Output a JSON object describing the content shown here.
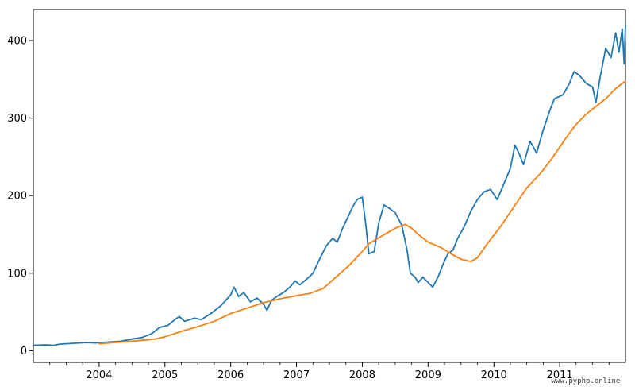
{
  "watermark": "www.pyphp.online",
  "chart_data": {
    "type": "line",
    "title": "",
    "xlabel": "",
    "ylabel": "",
    "xlim": [
      2003.0,
      2012.0
    ],
    "ylim": [
      -15,
      440
    ],
    "x_ticks": [
      {
        "value": 2004,
        "label": "2004"
      },
      {
        "value": 2005,
        "label": "2005"
      },
      {
        "value": 2006,
        "label": "2006"
      },
      {
        "value": 2007,
        "label": "2007"
      },
      {
        "value": 2008,
        "label": "2008"
      },
      {
        "value": 2009,
        "label": "2009"
      },
      {
        "value": 2010,
        "label": "2010"
      },
      {
        "value": 2011,
        "label": "2011"
      }
    ],
    "y_ticks": [
      {
        "value": 0,
        "label": "0"
      },
      {
        "value": 100,
        "label": "100"
      },
      {
        "value": 200,
        "label": "200"
      },
      {
        "value": 300,
        "label": "300"
      },
      {
        "value": 400,
        "label": "400"
      }
    ],
    "grid": false,
    "legend": "none",
    "series": [
      {
        "color": "#1f77b4",
        "points": [
          [
            2003.0,
            7
          ],
          [
            2003.2,
            7.5
          ],
          [
            2003.3,
            6.8
          ],
          [
            2003.4,
            8.5
          ],
          [
            2003.6,
            9.5
          ],
          [
            2003.8,
            10.5
          ],
          [
            2003.95,
            10
          ],
          [
            2004.1,
            11
          ],
          [
            2004.3,
            12
          ],
          [
            2004.5,
            15
          ],
          [
            2004.65,
            17
          ],
          [
            2004.8,
            22
          ],
          [
            2004.92,
            30
          ],
          [
            2005.05,
            33
          ],
          [
            2005.15,
            40
          ],
          [
            2005.22,
            44
          ],
          [
            2005.3,
            38
          ],
          [
            2005.45,
            42
          ],
          [
            2005.55,
            40
          ],
          [
            2005.7,
            48
          ],
          [
            2005.85,
            58
          ],
          [
            2006.0,
            72
          ],
          [
            2006.05,
            82
          ],
          [
            2006.12,
            70
          ],
          [
            2006.2,
            75
          ],
          [
            2006.3,
            63
          ],
          [
            2006.4,
            68
          ],
          [
            2006.5,
            60
          ],
          [
            2006.55,
            52
          ],
          [
            2006.62,
            65
          ],
          [
            2006.7,
            70
          ],
          [
            2006.8,
            75
          ],
          [
            2006.9,
            82
          ],
          [
            2006.98,
            90
          ],
          [
            2007.05,
            85
          ],
          [
            2007.15,
            92
          ],
          [
            2007.25,
            100
          ],
          [
            2007.35,
            118
          ],
          [
            2007.45,
            135
          ],
          [
            2007.55,
            145
          ],
          [
            2007.62,
            140
          ],
          [
            2007.7,
            158
          ],
          [
            2007.78,
            172
          ],
          [
            2007.85,
            185
          ],
          [
            2007.92,
            195
          ],
          [
            2008.0,
            198
          ],
          [
            2008.05,
            165
          ],
          [
            2008.1,
            125
          ],
          [
            2008.18,
            128
          ],
          [
            2008.25,
            165
          ],
          [
            2008.33,
            188
          ],
          [
            2008.42,
            183
          ],
          [
            2008.5,
            178
          ],
          [
            2008.6,
            162
          ],
          [
            2008.68,
            130
          ],
          [
            2008.73,
            100
          ],
          [
            2008.8,
            95
          ],
          [
            2008.85,
            88
          ],
          [
            2008.92,
            95
          ],
          [
            2009.0,
            88
          ],
          [
            2009.07,
            82
          ],
          [
            2009.15,
            95
          ],
          [
            2009.22,
            110
          ],
          [
            2009.3,
            125
          ],
          [
            2009.38,
            130
          ],
          [
            2009.45,
            145
          ],
          [
            2009.55,
            160
          ],
          [
            2009.65,
            180
          ],
          [
            2009.75,
            195
          ],
          [
            2009.85,
            205
          ],
          [
            2009.95,
            208
          ],
          [
            2010.05,
            195
          ],
          [
            2010.15,
            215
          ],
          [
            2010.25,
            235
          ],
          [
            2010.32,
            265
          ],
          [
            2010.38,
            255
          ],
          [
            2010.45,
            240
          ],
          [
            2010.55,
            270
          ],
          [
            2010.65,
            255
          ],
          [
            2010.75,
            285
          ],
          [
            2010.85,
            310
          ],
          [
            2010.92,
            325
          ],
          [
            2011.05,
            330
          ],
          [
            2011.15,
            345
          ],
          [
            2011.22,
            360
          ],
          [
            2011.3,
            355
          ],
          [
            2011.4,
            345
          ],
          [
            2011.5,
            340
          ],
          [
            2011.55,
            320
          ],
          [
            2011.62,
            355
          ],
          [
            2011.7,
            390
          ],
          [
            2011.78,
            378
          ],
          [
            2011.85,
            410
          ],
          [
            2011.9,
            385
          ],
          [
            2011.95,
            415
          ],
          [
            2011.98,
            370
          ],
          [
            2012.0,
            420
          ]
        ]
      },
      {
        "color": "#ff7f0e",
        "points": [
          [
            2004.0,
            9
          ],
          [
            2004.3,
            11
          ],
          [
            2004.6,
            13
          ],
          [
            2004.85,
            15
          ],
          [
            2005.0,
            18
          ],
          [
            2005.25,
            25
          ],
          [
            2005.5,
            31
          ],
          [
            2005.75,
            38
          ],
          [
            2006.0,
            48
          ],
          [
            2006.25,
            55
          ],
          [
            2006.5,
            62
          ],
          [
            2006.75,
            67
          ],
          [
            2007.0,
            71
          ],
          [
            2007.2,
            74
          ],
          [
            2007.4,
            80
          ],
          [
            2007.6,
            95
          ],
          [
            2007.8,
            110
          ],
          [
            2008.0,
            128
          ],
          [
            2008.1,
            138
          ],
          [
            2008.3,
            148
          ],
          [
            2008.5,
            158
          ],
          [
            2008.65,
            163
          ],
          [
            2008.75,
            158
          ],
          [
            2008.85,
            150
          ],
          [
            2009.0,
            140
          ],
          [
            2009.2,
            133
          ],
          [
            2009.35,
            125
          ],
          [
            2009.5,
            118
          ],
          [
            2009.65,
            115
          ],
          [
            2009.75,
            120
          ],
          [
            2009.9,
            138
          ],
          [
            2010.1,
            160
          ],
          [
            2010.3,
            185
          ],
          [
            2010.5,
            210
          ],
          [
            2010.7,
            228
          ],
          [
            2010.9,
            250
          ],
          [
            2011.1,
            275
          ],
          [
            2011.25,
            292
          ],
          [
            2011.4,
            305
          ],
          [
            2011.55,
            315
          ],
          [
            2011.7,
            325
          ],
          [
            2011.85,
            338
          ],
          [
            2012.0,
            348
          ]
        ]
      }
    ]
  }
}
